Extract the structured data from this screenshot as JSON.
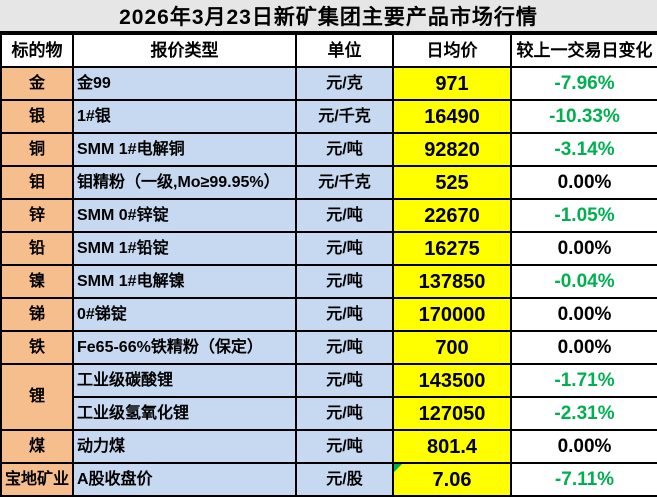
{
  "title": "2026年3月23日新矿集团主要产品市场行情",
  "table": {
    "columns": [
      "标的物",
      "报价类型",
      "单位",
      "日均价",
      "较上一交易日变化"
    ],
    "rows": [
      {
        "target": "金",
        "target_rowspan": 1,
        "quote_type": "金99",
        "unit": "元/克",
        "avg_price": "971",
        "change": "-7.96%",
        "change_style": "green",
        "flag": false
      },
      {
        "target": "银",
        "target_rowspan": 1,
        "quote_type": "1#银",
        "unit": "元/千克",
        "avg_price": "16490",
        "change": "-10.33%",
        "change_style": "green",
        "flag": false
      },
      {
        "target": "铜",
        "target_rowspan": 1,
        "quote_type": "SMM 1#电解铜",
        "unit": "元/吨",
        "avg_price": "92820",
        "change": "-3.14%",
        "change_style": "green",
        "flag": false
      },
      {
        "target": "钼",
        "target_rowspan": 1,
        "quote_type": "钼精粉（一级,Mo≥99.95%）",
        "unit": "元/千克",
        "avg_price": "525",
        "change": "0.00%",
        "change_style": "black",
        "flag": false
      },
      {
        "target": "锌",
        "target_rowspan": 1,
        "quote_type": "SMM 0#锌锭",
        "unit": "元/吨",
        "avg_price": "22670",
        "change": "-1.05%",
        "change_style": "green",
        "flag": false
      },
      {
        "target": "铅",
        "target_rowspan": 1,
        "quote_type": "SMM 1#铅锭",
        "unit": "元/吨",
        "avg_price": "16275",
        "change": "0.00%",
        "change_style": "black",
        "flag": false
      },
      {
        "target": "镍",
        "target_rowspan": 1,
        "quote_type": "SMM 1#电解镍",
        "unit": "元/吨",
        "avg_price": "137850",
        "change": "-0.04%",
        "change_style": "green",
        "flag": false
      },
      {
        "target": "锑",
        "target_rowspan": 1,
        "quote_type": "0#锑锭",
        "unit": "元/吨",
        "avg_price": "170000",
        "change": "0.00%",
        "change_style": "black",
        "flag": false
      },
      {
        "target": "铁",
        "target_rowspan": 1,
        "quote_type": "Fe65-66%铁精粉（保定）",
        "unit": "元/吨",
        "avg_price": "700",
        "change": "0.00%",
        "change_style": "black",
        "flag": false
      },
      {
        "target": "锂",
        "target_rowspan": 2,
        "quote_type": "工业级碳酸锂",
        "unit": "元/吨",
        "avg_price": "143500",
        "change": "-1.71%",
        "change_style": "green",
        "flag": false
      },
      {
        "target": null,
        "target_rowspan": 0,
        "quote_type": "工业级氢氧化锂",
        "unit": "元/吨",
        "avg_price": "127050",
        "change": "-2.31%",
        "change_style": "green",
        "flag": false
      },
      {
        "target": "煤",
        "target_rowspan": 1,
        "quote_type": "动力煤",
        "unit": "元/吨",
        "avg_price": "801.4",
        "change": "0.00%",
        "change_style": "black",
        "flag": false
      },
      {
        "target": "宝地矿业",
        "target_rowspan": 1,
        "quote_type": "A股收盘价",
        "unit": "元/股",
        "avg_price": "7.06",
        "change": "-7.11%",
        "change_style": "green",
        "flag": true
      }
    ]
  },
  "colors": {
    "title_bg": "#E7E6E6",
    "target_bg": "#F6BE8C",
    "quote_bg": "#C6D9F0",
    "price_bg": "#FFFF00",
    "negative_change": "#00B050",
    "zero_change": "#000000",
    "border": "#000000",
    "flag": "#00B050"
  }
}
